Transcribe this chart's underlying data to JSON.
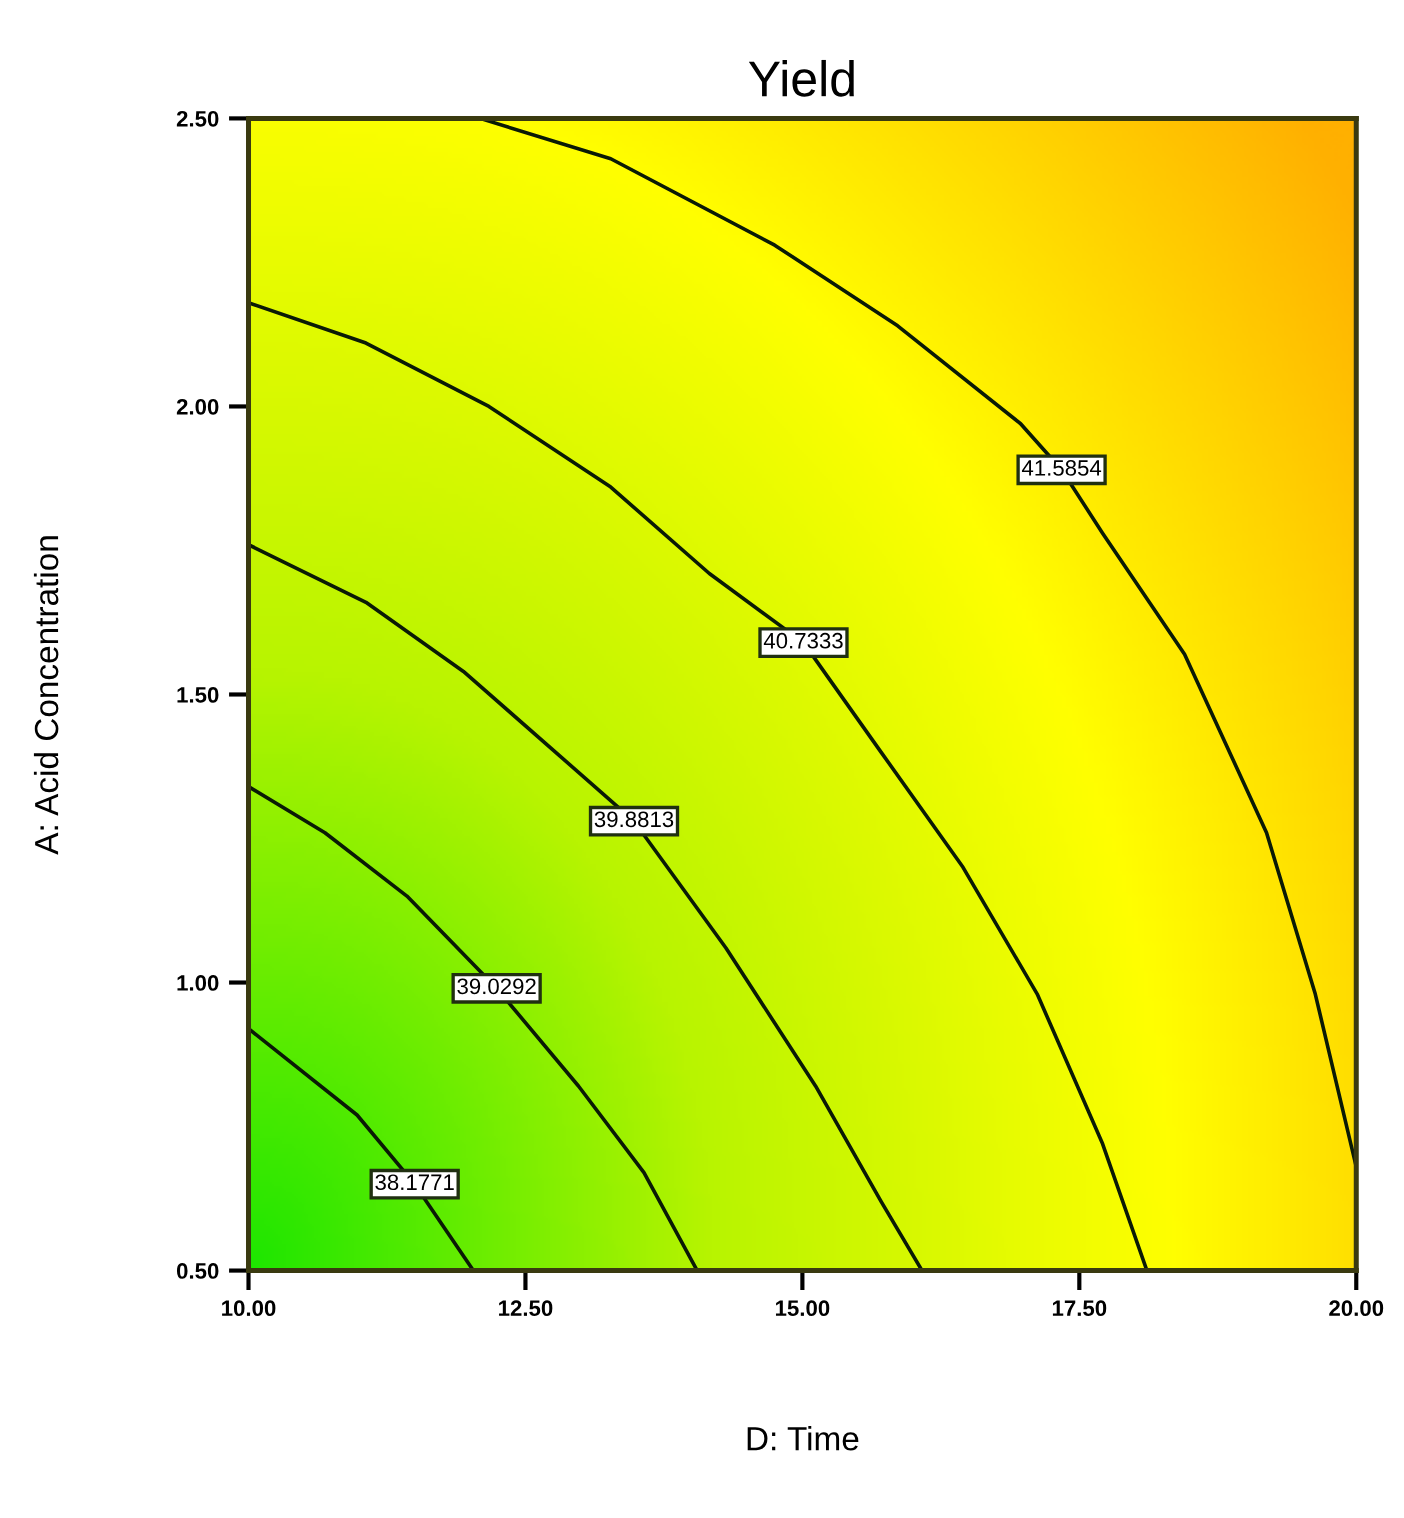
{
  "chart_data": {
    "type": "line",
    "title": "Yield",
    "xlabel": "D: Time",
    "ylabel": "A: Acid Concentration",
    "xlim": [
      10,
      20
    ],
    "ylim": [
      0.5,
      2.5
    ],
    "xticks": [
      {
        "value": 10,
        "label": "10.00"
      },
      {
        "value": 12.5,
        "label": "12.50"
      },
      {
        "value": 15,
        "label": "15.00"
      },
      {
        "value": 17.5,
        "label": "17.50"
      },
      {
        "value": 20,
        "label": "20.00"
      }
    ],
    "yticks": [
      {
        "value": 0.5,
        "label": "0.50"
      },
      {
        "value": 1,
        "label": "1.00"
      },
      {
        "value": 1.5,
        "label": "1.50"
      },
      {
        "value": 2,
        "label": "2.00"
      },
      {
        "value": 2.5,
        "label": "2.50"
      }
    ],
    "grid": false,
    "series": [
      {
        "name": "38.1771",
        "color": "#0a1a05",
        "x": [
          10,
          10.98,
          11.5,
          12.03
        ],
        "values": [
          0.92,
          0.77,
          0.65,
          0.5
        ]
      },
      {
        "name": "39.0292",
        "color": "#0a1a05",
        "x": [
          10,
          10.69,
          11.43,
          12.24,
          12.98,
          13.57,
          14.05
        ],
        "values": [
          1.34,
          1.26,
          1.15,
          0.99,
          0.82,
          0.67,
          0.5
        ]
      },
      {
        "name": "39.8813",
        "color": "#0a1a05",
        "x": [
          10,
          11.06,
          11.94,
          12.83,
          13.48,
          14.31,
          15.12,
          15.71,
          16.08
        ],
        "values": [
          1.76,
          1.66,
          1.54,
          1.39,
          1.28,
          1.06,
          0.82,
          0.62,
          0.5
        ]
      },
      {
        "name": "40.7333",
        "color": "#0a1a05",
        "x": [
          10,
          11.06,
          12.17,
          13.27,
          14.16,
          15.01,
          15.71,
          16.45,
          17.12,
          17.71,
          18.11
        ],
        "values": [
          2.18,
          2.11,
          2.0,
          1.86,
          1.71,
          1.59,
          1.4,
          1.2,
          0.98,
          0.72,
          0.5
        ]
      },
      {
        "name": "41.5854",
        "color": "#0a1a05",
        "x": [
          12.09,
          13.27,
          14.75,
          15.86,
          16.97,
          17.34,
          17.71,
          18.45,
          19.19,
          19.63,
          20
        ],
        "values": [
          2.5,
          2.43,
          2.28,
          2.14,
          1.97,
          1.89,
          1.78,
          1.57,
          1.26,
          0.98,
          0.68
        ]
      }
    ]
  }
}
